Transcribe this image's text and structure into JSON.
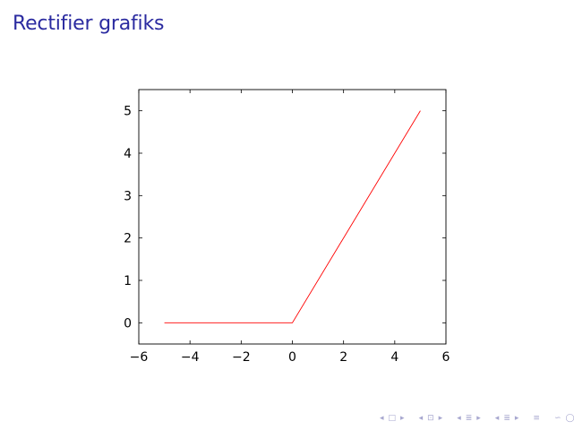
{
  "page": {
    "title": "Rectifier grafiks"
  },
  "chart_data": {
    "type": "line",
    "title": "",
    "xlabel": "",
    "ylabel": "",
    "xlim": [
      -6,
      6
    ],
    "ylim": [
      -0.5,
      5.5
    ],
    "x_ticks": [
      -6,
      -4,
      -2,
      0,
      2,
      4,
      6
    ],
    "x_tick_labels": [
      "−6",
      "−4",
      "−2",
      "0",
      "2",
      "4",
      "6"
    ],
    "y_ticks": [
      0,
      1,
      2,
      3,
      4,
      5
    ],
    "y_tick_labels": [
      "0",
      "1",
      "2",
      "3",
      "4",
      "5"
    ],
    "grid": false,
    "series": [
      {
        "color": "#ff0000",
        "x": [
          -5,
          0,
          5
        ],
        "y": [
          0,
          0,
          5
        ]
      }
    ]
  },
  "nav": {
    "color": "#a7a7cf",
    "items": [
      {
        "name": "nav-first-icon",
        "glyph": "◂"
      },
      {
        "name": "nav-box-icon",
        "glyph": "□"
      },
      {
        "name": "nav-next-icon",
        "glyph": "▸"
      },
      {
        "name": "nav-prev-frame-icon",
        "glyph": "◂"
      },
      {
        "name": "nav-frame-icon",
        "glyph": "⊡"
      },
      {
        "name": "nav-next-frame-icon",
        "glyph": "▸"
      },
      {
        "name": "nav-prev-section-icon",
        "glyph": "◂"
      },
      {
        "name": "nav-section-icon",
        "glyph": "≣"
      },
      {
        "name": "nav-next-section-icon",
        "glyph": "▸"
      },
      {
        "name": "nav-prev-sub-icon",
        "glyph": "◂"
      },
      {
        "name": "nav-sub-icon",
        "glyph": "≣"
      },
      {
        "name": "nav-next-sub-icon",
        "glyph": "▸"
      },
      {
        "name": "nav-align-icon",
        "glyph": "≡"
      },
      {
        "name": "nav-search-icon",
        "glyph": "∽"
      },
      {
        "name": "nav-zoom-icon",
        "glyph": "◯"
      },
      {
        "name": "nav-back-icon",
        "glyph": "∾"
      }
    ]
  }
}
